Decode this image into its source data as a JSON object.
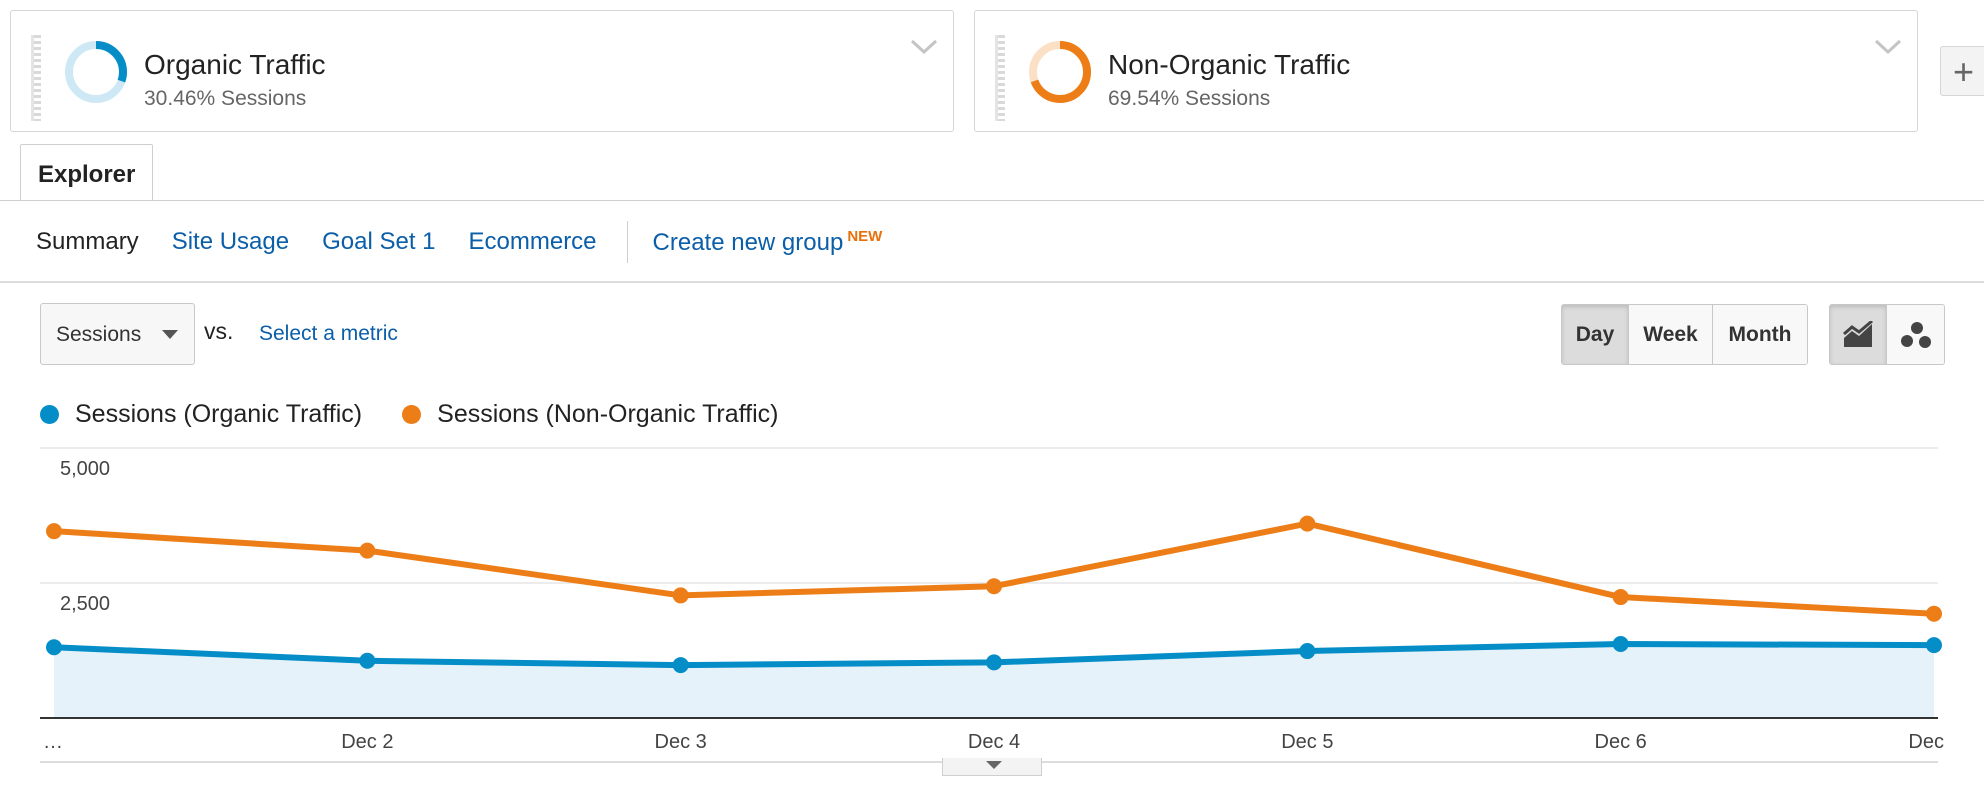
{
  "segments": [
    {
      "title": "Organic Traffic",
      "subtitle": "30.46% Sessions",
      "color": "#058dc7",
      "share": 0.3046
    },
    {
      "title": "Non-Organic Traffic",
      "subtitle": "69.54% Sessions",
      "color": "#ed7e17",
      "share": 0.6954
    }
  ],
  "add_segment_label": "+",
  "tabs": {
    "explorer": "Explorer"
  },
  "subtabs": {
    "items": [
      "Summary",
      "Site Usage",
      "Goal Set 1",
      "Ecommerce"
    ],
    "active": "Summary",
    "create_group": "Create new group",
    "new_badge": "NEW"
  },
  "controls": {
    "metric": "Sessions",
    "vs": "vs.",
    "select_metric": "Select a metric",
    "periods": [
      "Day",
      "Week",
      "Month"
    ],
    "active_period": "Day"
  },
  "icons": {
    "line_chart": "line-chart-icon",
    "motion_chart": "motion-chart-icon",
    "dropdown": "chevron-down-icon",
    "collapse": "caret-down-icon"
  },
  "chart_data": {
    "type": "line",
    "categories": [
      "…",
      "Dec 2",
      "Dec 3",
      "Dec 4",
      "Dec 5",
      "Dec 6",
      "Dec"
    ],
    "series": [
      {
        "name": "Sessions (Organic Traffic)",
        "color": "#058dc7",
        "area": true,
        "values": [
          1310,
          1060,
          980,
          1030,
          1240,
          1370,
          1350
        ]
      },
      {
        "name": "Sessions (Non-Organic Traffic)",
        "color": "#ed7e17",
        "area": false,
        "values": [
          3460,
          3100,
          2270,
          2440,
          3600,
          2240,
          1930
        ]
      }
    ],
    "yticks": [
      "5,000",
      "2,500"
    ],
    "ytick_values": [
      5000,
      2500
    ],
    "ylim": [
      0,
      5000
    ],
    "grid": true,
    "legend": "top-left"
  }
}
